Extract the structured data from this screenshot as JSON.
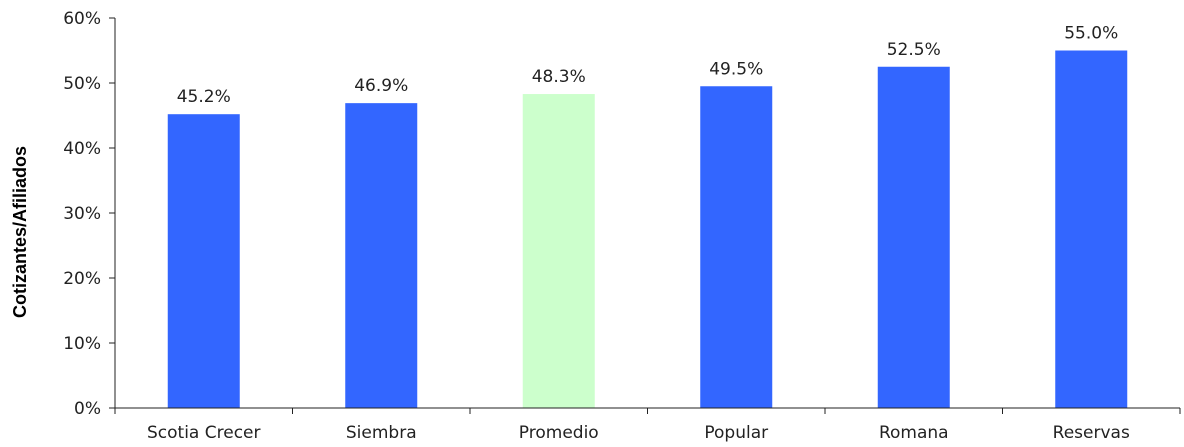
{
  "chart_data": {
    "type": "bar",
    "title": "",
    "xlabel": "",
    "ylabel": "Cotizantes/Afiliados",
    "ylim": [
      0,
      60
    ],
    "y_ticks": [
      "0%",
      "10%",
      "20%",
      "30%",
      "40%",
      "50%",
      "60%"
    ],
    "y_tick_values": [
      0,
      10,
      20,
      30,
      40,
      50,
      60
    ],
    "categories": [
      "Scotia Crecer",
      "Siembra",
      "Promedio",
      "Popular",
      "Romana",
      "Reservas"
    ],
    "values": [
      45.2,
      46.9,
      48.3,
      49.5,
      52.5,
      55.0
    ],
    "data_labels": [
      "45.2%",
      "46.9%",
      "48.3%",
      "49.5%",
      "52.5%",
      "55.0%"
    ],
    "bar_colors": [
      "#3366FF",
      "#3366FF",
      "#CCFFCC",
      "#3366FF",
      "#3366FF",
      "#3366FF"
    ],
    "grid": false,
    "legend": "none"
  }
}
